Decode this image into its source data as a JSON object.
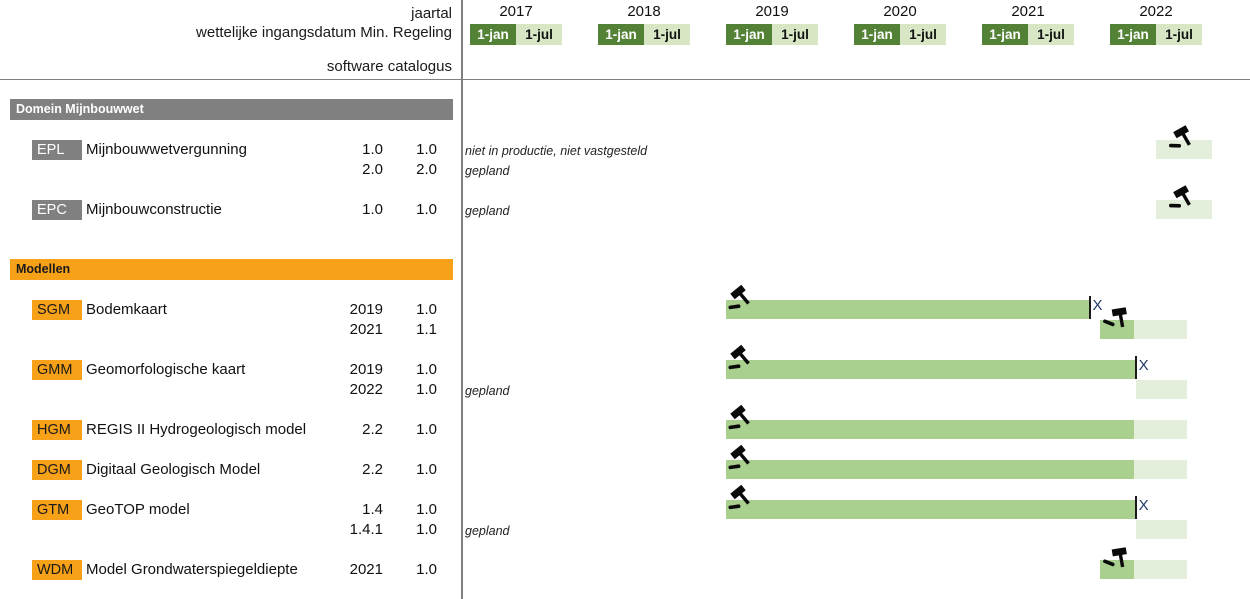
{
  "title_block": {
    "line1": "jaartal",
    "line2": "wettelijke ingangsdatum Min. Regeling",
    "line3": "software catalogus"
  },
  "colors": {
    "dark_green": "#538135",
    "tick_light_green": "#d8e6c3",
    "bar_actual_green": "#a9d08e",
    "bar_planned_green": "#e3efda",
    "section_gray": "#808080",
    "section_orange": "#f6a118",
    "marker_x_blue": "#1f3864"
  },
  "chart_data": {
    "type": "gantt",
    "axis": {
      "years": [
        "2017",
        "2018",
        "2019",
        "2020",
        "2021",
        "2022"
      ],
      "tick_labels": [
        "1-jan",
        "1-jul"
      ],
      "x_range": [
        2017,
        2023
      ]
    },
    "sections": [
      {
        "title": "Domein Mijnbouwwet",
        "theme": "gray",
        "products": [
          {
            "code": "EPL",
            "name": "Mijnbouwwetvergunning",
            "lines": [
              {
                "regeling": "1.0",
                "catalogus": "1.0",
                "note": "niet in productie, niet vastgesteld",
                "planned": [
                  2022.36,
                  2022.8
                ],
                "gavel": {
                  "x": 2022.5,
                  "rot": 10
                }
              },
              {
                "regeling": "2.0",
                "catalogus": "2.0",
                "note": "gepland"
              }
            ]
          },
          {
            "code": "EPC",
            "name": "Mijnbouwconstructie",
            "lines": [
              {
                "regeling": "1.0",
                "catalogus": "1.0",
                "note": "gepland",
                "planned": [
                  2022.36,
                  2022.8
                ],
                "gavel": {
                  "x": 2022.5,
                  "rot": 10
                }
              }
            ]
          }
        ]
      },
      {
        "title": "Modellen",
        "theme": "orange",
        "products": [
          {
            "code": "SGM",
            "name": "Bodemkaart",
            "lines": [
              {
                "regeling": "2019",
                "catalogus": "1.0",
                "actual": [
                  2019.0,
                  2021.84
                ],
                "end_marker": "X",
                "gavel": {
                  "x": 2019.05,
                  "rot": 0
                }
              },
              {
                "regeling": "2021",
                "catalogus": "1.1",
                "actual": [
                  2021.92,
                  2022.19
                ],
                "planned": [
                  2022.19,
                  2022.6
                ],
                "gavel": {
                  "x": 2022.0,
                  "rot": 30
                }
              }
            ]
          },
          {
            "code": "GMM",
            "name": "Geomorfologische kaart",
            "lines": [
              {
                "regeling": "2019",
                "catalogus": "1.0",
                "actual": [
                  2019.0,
                  2022.2
                ],
                "end_marker": "X",
                "gavel": {
                  "x": 2019.05,
                  "rot": 0
                }
              },
              {
                "regeling": "2022",
                "catalogus": "1.0",
                "note": "gepland",
                "planned": [
                  2022.2,
                  2022.6
                ]
              }
            ]
          },
          {
            "code": "HGM",
            "name": "REGIS II Hydrogeologisch model",
            "lines": [
              {
                "regeling": "2.2",
                "catalogus": "1.0",
                "actual": [
                  2019.0,
                  2022.19
                ],
                "planned": [
                  2022.19,
                  2022.6
                ],
                "gavel": {
                  "x": 2019.05,
                  "rot": 0
                }
              }
            ]
          },
          {
            "code": "DGM",
            "name": "Digitaal Geologisch Model",
            "lines": [
              {
                "regeling": "2.2",
                "catalogus": "1.0",
                "actual": [
                  2019.0,
                  2022.19
                ],
                "planned": [
                  2022.19,
                  2022.6
                ],
                "gavel": {
                  "x": 2019.05,
                  "rot": 0
                }
              }
            ]
          },
          {
            "code": "GTM",
            "name": "GeoTOP model",
            "lines": [
              {
                "regeling": "1.4",
                "catalogus": "1.0",
                "actual": [
                  2019.0,
                  2022.2
                ],
                "end_marker": "X",
                "gavel": {
                  "x": 2019.05,
                  "rot": 0
                }
              },
              {
                "regeling": "1.4.1",
                "catalogus": "1.0",
                "note": "gepland",
                "planned": [
                  2022.2,
                  2022.6
                ]
              }
            ]
          },
          {
            "code": "WDM",
            "name": "Model Grondwaterspiegeldiepte",
            "lines": [
              {
                "regeling": "2021",
                "catalogus": "1.0",
                "actual": [
                  2021.92,
                  2022.19
                ],
                "planned": [
                  2022.19,
                  2022.6
                ],
                "gavel": {
                  "x": 2022.0,
                  "rot": 30
                }
              }
            ]
          }
        ]
      }
    ]
  }
}
